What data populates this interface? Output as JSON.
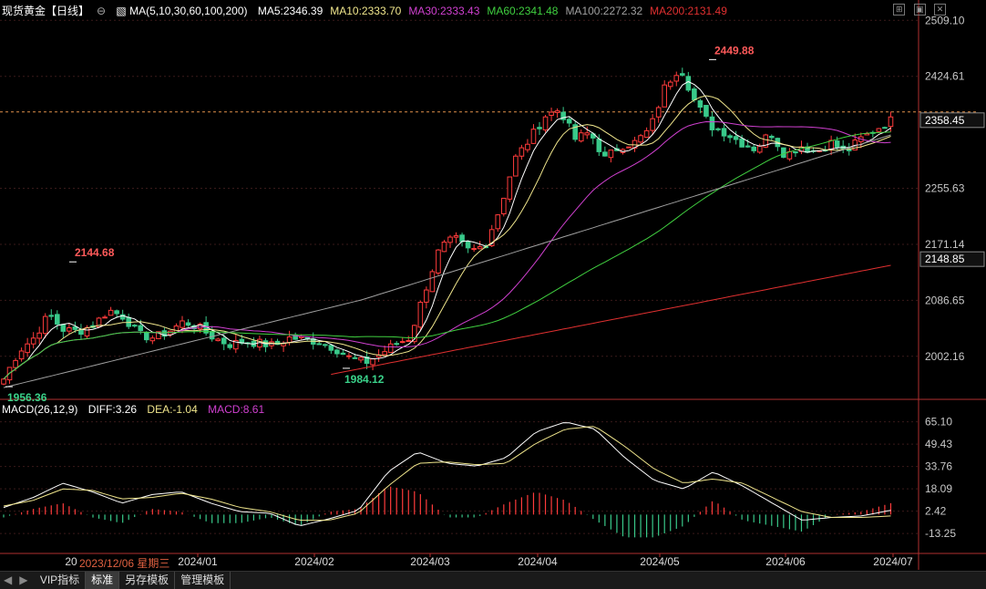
{
  "header": {
    "symbol": "现货黄金【日线】",
    "indicator": "MA(5,10,30,60,100,200)",
    "ma_values": [
      {
        "label": "MA5:2346.39",
        "color": "#ffffff"
      },
      {
        "label": "MA10:2333.70",
        "color": "#f0e68c"
      },
      {
        "label": "MA30:2333.43",
        "color": "#d040d0"
      },
      {
        "label": "MA60:2341.48",
        "color": "#40d040"
      },
      {
        "label": "MA100:2272.32",
        "color": "#a0a0a0"
      },
      {
        "label": "MA200:2131.49",
        "color": "#e03030"
      }
    ]
  },
  "macd_legend": {
    "name": "MACD(26,12,9)",
    "diff": "DIFF:3.26",
    "dea": "DEA:-1.04",
    "macd": "MACD:8.61"
  },
  "cursor_date": "2023/12/06 星期三",
  "bottom_tabs": [
    "VIP指标",
    "标准",
    "另存模板",
    "管理模板"
  ],
  "colors": {
    "up": "#ff3b3b",
    "down": "#39c98a",
    "diff": "#ffffff",
    "dea": "#f0e68c",
    "grid": "#3a1a1a",
    "axis": "#b03030"
  },
  "chart_data": {
    "type": "candlestick",
    "price_axis": {
      "ticks": [
        "2509.10",
        "2424.61",
        "2358.45",
        "2255.63",
        "2171.14",
        "2148.85",
        "2086.65",
        "2002.16"
      ],
      "current_price": "2358.45",
      "marker_price": "2148.85",
      "range": [
        1940,
        2515
      ]
    },
    "x_axis_labels": [
      "20",
      "2024/01",
      "2024/02",
      "2024/03",
      "2024/04",
      "2024/05",
      "2024/06",
      "2024/07"
    ],
    "annotations": [
      {
        "label": "2144.68",
        "type": "high"
      },
      {
        "label": "1956.36",
        "type": "low"
      },
      {
        "label": "1984.12",
        "type": "low"
      },
      {
        "label": "2449.88",
        "type": "high"
      }
    ],
    "anchor_closes": [
      1968,
      2010,
      2030,
      2065,
      2042,
      2040,
      2050,
      2072,
      2062,
      2035,
      2030,
      2040,
      2055,
      2045,
      2030,
      2020,
      2025,
      2022,
      2018,
      2030,
      2028,
      2024,
      2015,
      2000,
      1992,
      2005,
      2020,
      2030,
      2100,
      2165,
      2180,
      2160,
      2170,
      2225,
      2300,
      2330,
      2365,
      2375,
      2330,
      2340,
      2300,
      2320,
      2325,
      2345,
      2410,
      2440,
      2385,
      2350,
      2340,
      2325,
      2315,
      2340,
      2305,
      2320,
      2310,
      2325,
      2310,
      2330,
      2345,
      2358
    ],
    "macd_axis": {
      "ticks": [
        "65.10",
        "49.43",
        "33.76",
        "18.09",
        "2.42",
        "-13.25"
      ],
      "range": [
        -26,
        70
      ]
    },
    "macd_anchors_diff": [
      5,
      12,
      22,
      16,
      8,
      14,
      16,
      8,
      2,
      1,
      -8,
      -3,
      3,
      30,
      44,
      36,
      34,
      40,
      58,
      65,
      60,
      40,
      24,
      18,
      30,
      20,
      8,
      -4,
      -2,
      -1,
      3
    ],
    "macd_anchors_dea": [
      6,
      10,
      18,
      17,
      11,
      12,
      15,
      11,
      5,
      2,
      -4,
      -4,
      1,
      20,
      36,
      37,
      35,
      36,
      50,
      60,
      62,
      48,
      32,
      22,
      25,
      22,
      12,
      2,
      -2,
      -2,
      -1
    ]
  }
}
